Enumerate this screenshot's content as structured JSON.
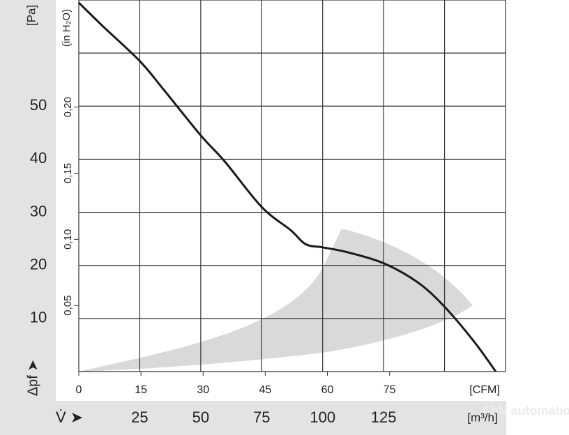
{
  "chart_data": {
    "type": "line",
    "y_label": "[Pa]",
    "y2_label": "(in H₂O)",
    "y_symbol": "Δpf ➤",
    "x_symbol": "V̇ ➤",
    "x_label": "[m³/h]",
    "x2_label": "[CFM]",
    "watermark": "AbN automation",
    "x": [
      0,
      10,
      25,
      35,
      50,
      60,
      75,
      87,
      93,
      100,
      110,
      125,
      139,
      150,
      162,
      171
    ],
    "values": [
      69.5,
      65,
      58.5,
      53,
      44.5,
      39.5,
      31,
      26.6,
      24,
      23.4,
      22.5,
      20.4,
      16.8,
      12.2,
      5.7,
      0
    ],
    "color": "#1a1a1a",
    "xlim": [
      0,
      175
    ],
    "xticks": [
      25,
      50,
      75,
      100,
      125
    ],
    "x_extra_gridlines": [
      150
    ],
    "x2lim": [
      0,
      103
    ],
    "x2ticks": [
      0,
      15,
      30,
      45,
      60,
      75
    ],
    "ylim": [
      0,
      70
    ],
    "yticks": [
      10,
      20,
      30,
      40,
      50
    ],
    "y_extra_gridlines": [
      60
    ],
    "y2lim": [
      0,
      0.281
    ],
    "y2ticks": [
      {
        "value": 0.05,
        "label": "0,05"
      },
      {
        "value": 0.1,
        "label": "0,10"
      },
      {
        "value": 0.15,
        "label": "0,15"
      },
      {
        "value": 0.2,
        "label": "0,20"
      }
    ],
    "grid": true
  }
}
